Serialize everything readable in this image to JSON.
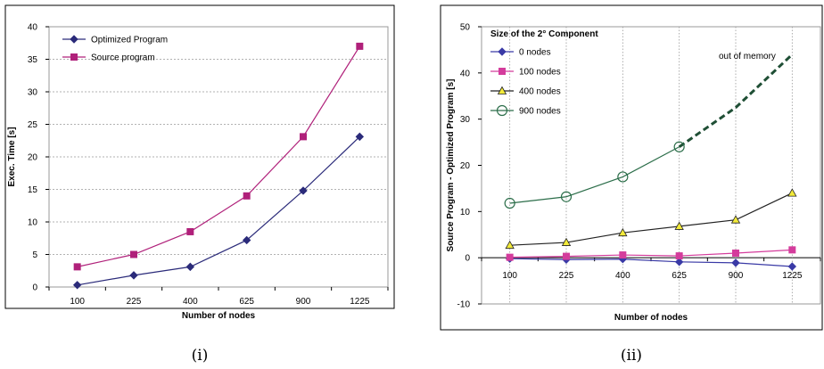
{
  "chart_data": [
    {
      "type": "line",
      "caption": "(i)",
      "xlabel": "Number of nodes",
      "ylabel": "Exec. Time [s]",
      "categories": [
        "100",
        "225",
        "400",
        "625",
        "900",
        "1225"
      ],
      "ylim": [
        0,
        40
      ],
      "yticks": [
        0,
        5,
        10,
        15,
        20,
        25,
        30,
        35,
        40
      ],
      "grid": "horizontal",
      "legend": "top-left",
      "series": [
        {
          "name": "Optimized Program",
          "color": "#2b2b7a",
          "marker": "diamond",
          "values": [
            0.3,
            1.8,
            3.1,
            7.2,
            14.8,
            23.1
          ]
        },
        {
          "name": "Source program",
          "color": "#b0207a",
          "marker": "square",
          "values": [
            3.1,
            5.0,
            8.5,
            14.0,
            23.1,
            37.0
          ]
        }
      ]
    },
    {
      "type": "line",
      "caption": "(ii)",
      "xlabel": "Number of nodes",
      "ylabel": "Source Program - Optimized Program [s]",
      "legend_title": "Size of the 2° Component",
      "categories": [
        "100",
        "225",
        "400",
        "625",
        "900",
        "1225"
      ],
      "ylim": [
        -10,
        50
      ],
      "yticks": [
        -10,
        0,
        10,
        20,
        30,
        40,
        50
      ],
      "grid": "vertical",
      "legend": "top-left",
      "annotation": "out of memory",
      "series": [
        {
          "name": "0 nodes",
          "color": "#3a3aa6",
          "marker": "diamond",
          "values": [
            -0.2,
            -0.4,
            -0.3,
            -0.9,
            -1.1,
            -1.9
          ]
        },
        {
          "name": "100 nodes",
          "color": "#d43c9c",
          "marker": "square",
          "values": [
            0.1,
            0.3,
            0.6,
            0.4,
            1.0,
            1.7
          ]
        },
        {
          "name": "400 nodes",
          "color": "#222222",
          "marker": "triangle",
          "values": [
            2.7,
            3.3,
            5.4,
            6.8,
            8.2,
            14.0
          ]
        },
        {
          "name": "900 nodes",
          "color": "#2c6e4a",
          "marker": "circle",
          "values": [
            11.8,
            13.2,
            17.5,
            24.0,
            null,
            null
          ],
          "projected": [
            null,
            null,
            null,
            24.0,
            32.5,
            44.0
          ],
          "projected_color": "#1f4f35"
        }
      ]
    }
  ]
}
